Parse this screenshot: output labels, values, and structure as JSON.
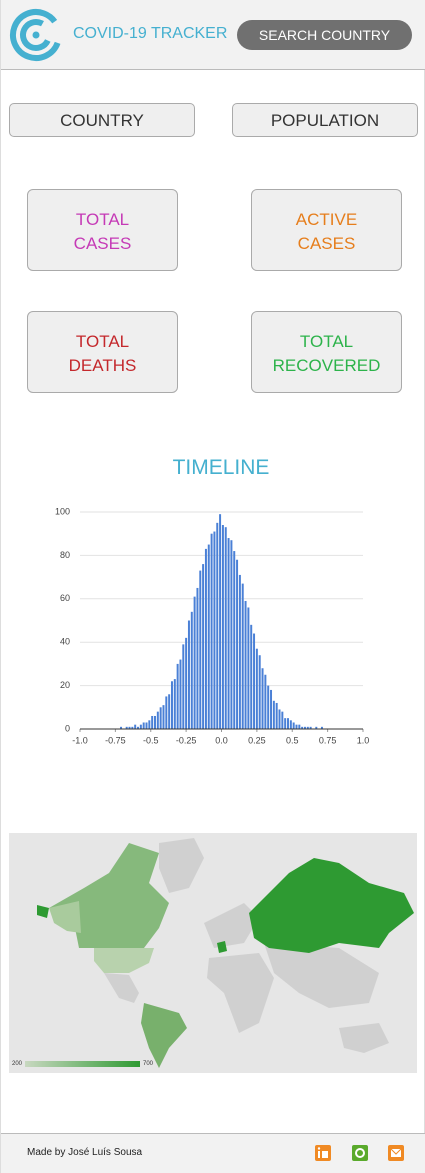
{
  "header": {
    "title": "COVID-19 TRACKER",
    "search_button": "SEARCH COUNTRY"
  },
  "info_buttons": [
    "COUNTRY",
    "POPULATION"
  ],
  "cards": [
    {
      "lines": [
        "TOTAL",
        "CASES"
      ],
      "color": "#c53ab6"
    },
    {
      "lines": [
        "ACTIVE",
        "CASES"
      ],
      "color": "#e67e1c"
    },
    {
      "lines": [
        "TOTAL",
        "DEATHS"
      ],
      "color": "#c4282c"
    },
    {
      "lines": [
        "TOTAL",
        "RECOVERED"
      ],
      "color": "#2db34b"
    }
  ],
  "timeline": {
    "title": "TIMELINE"
  },
  "chart_data": {
    "type": "histogram",
    "color": "#4a80d6",
    "grid": true,
    "bins": [
      -1.0,
      -0.98,
      -0.96,
      -0.94,
      -0.92,
      -0.9,
      -0.88,
      -0.86,
      -0.84,
      -0.82,
      -0.8,
      -0.78,
      -0.76,
      -0.74,
      -0.72,
      -0.7,
      -0.68,
      -0.66,
      -0.64,
      -0.62,
      -0.6,
      -0.58,
      -0.56,
      -0.54,
      -0.52,
      -0.5,
      -0.48,
      -0.46,
      -0.44,
      -0.42,
      -0.4,
      -0.38,
      -0.36,
      -0.34,
      -0.32,
      -0.3,
      -0.28,
      -0.26,
      -0.24,
      -0.22,
      -0.2,
      -0.18,
      -0.16,
      -0.14,
      -0.12,
      -0.1,
      -0.08,
      -0.06,
      -0.04,
      -0.02,
      0.0,
      0.02,
      0.04,
      0.06,
      0.08,
      0.1,
      0.12,
      0.14,
      0.16,
      0.18,
      0.2,
      0.22,
      0.24,
      0.26,
      0.28,
      0.3,
      0.32,
      0.34,
      0.36,
      0.38,
      0.4,
      0.42,
      0.44,
      0.46,
      0.48,
      0.5,
      0.52,
      0.54,
      0.56,
      0.58,
      0.6,
      0.62,
      0.64,
      0.66,
      0.68,
      0.7,
      0.72,
      0.74,
      0.76,
      0.78,
      0.8,
      0.82,
      0.84,
      0.86,
      0.88,
      0.9,
      0.92,
      0.94,
      0.96,
      0.98,
      1.0
    ],
    "values": [
      0,
      0,
      0,
      0,
      0,
      0,
      0,
      0,
      0,
      0,
      0,
      0,
      0,
      0,
      1,
      0,
      1,
      1,
      1,
      2,
      1,
      2,
      3,
      3,
      4,
      6,
      6,
      8,
      10,
      11,
      15,
      16,
      22,
      23,
      30,
      32,
      39,
      42,
      50,
      54,
      61,
      65,
      73,
      76,
      83,
      85,
      90,
      91,
      95,
      99,
      94,
      93,
      88,
      87,
      82,
      78,
      71,
      67,
      59,
      56,
      48,
      44,
      37,
      34,
      28,
      25,
      20,
      18,
      13,
      12,
      9,
      8,
      5,
      5,
      4,
      3,
      2,
      2,
      1,
      1,
      1,
      1,
      0,
      1,
      0,
      1,
      0,
      0,
      0,
      0,
      0,
      0,
      0,
      0,
      0,
      0,
      0,
      0,
      0,
      0
    ],
    "xlim": [
      -1.0,
      1.0
    ],
    "xticks": [
      {
        "value": -1.0,
        "label": "-1.0"
      },
      -0.75,
      -0.5,
      -0.25,
      {
        "value": 0.0,
        "label": "0.0"
      },
      0.25,
      0.5,
      0.75,
      {
        "value": 1.0,
        "label": "1.0"
      }
    ],
    "ylim": [
      0,
      100
    ],
    "yticks": [
      0,
      20,
      40,
      60,
      80,
      100
    ]
  },
  "map": {
    "legend_min": 200,
    "legend_max": 700
  },
  "footer": {
    "credit": "Made by José Luís Sousa"
  }
}
